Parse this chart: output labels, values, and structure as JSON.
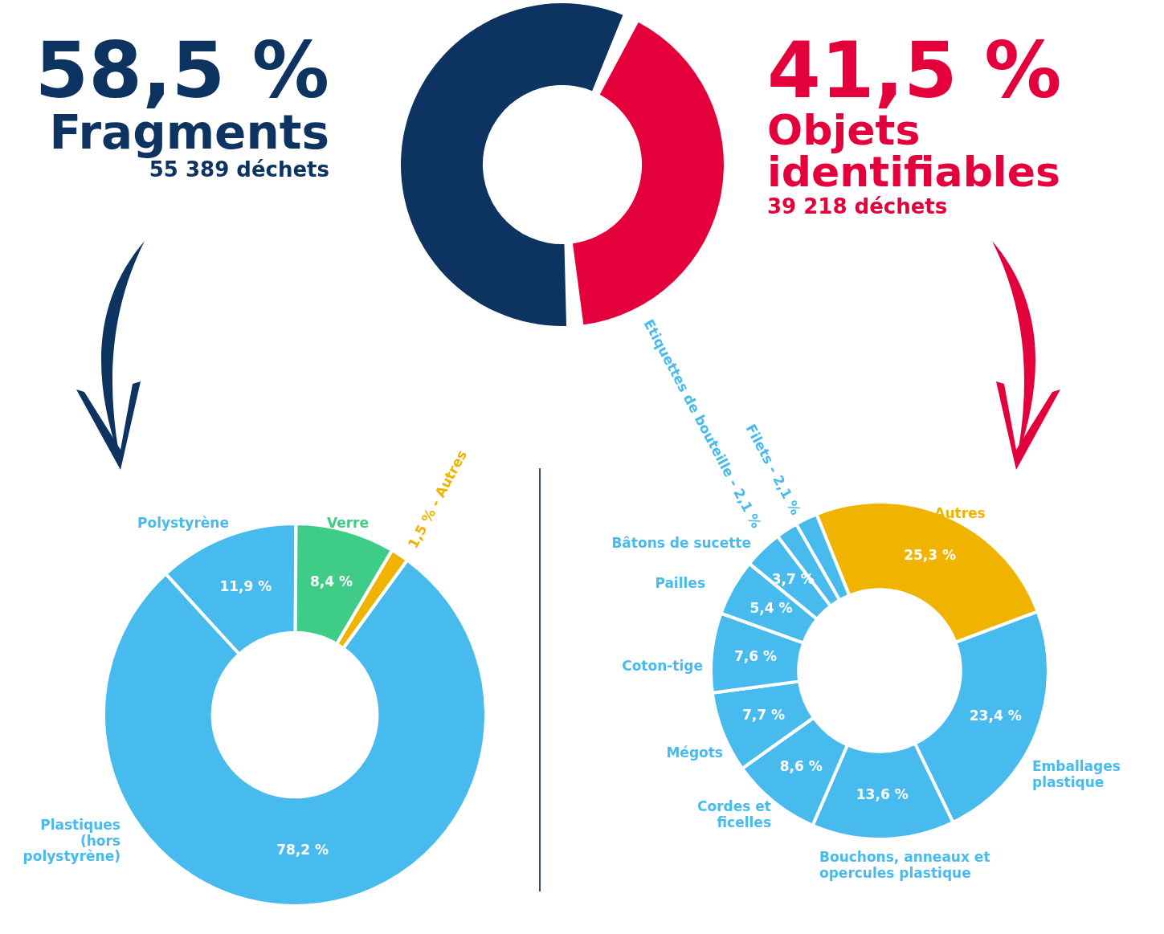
{
  "chart_data": [
    {
      "type": "donut",
      "categories": [
        "Fragments",
        "Objets identifiables"
      ],
      "values": [
        58.5,
        41.5
      ],
      "colors": [
        "#0d3360",
        "#e4003a"
      ],
      "value_labels": [
        "58,5 %",
        "41,5 %"
      ],
      "annotations": [
        "55 389 déchets",
        "39 218 déchets"
      ]
    },
    {
      "type": "donut",
      "categories": [
        "Plastiques (hors polystyrène)",
        "Polystyrène",
        "Verre",
        "1,5 % - Autres"
      ],
      "values": [
        78.2,
        11.9,
        8.4,
        1.5
      ],
      "colors": [
        "#48bbee",
        "#48bbee",
        "#3ecc87",
        "#f0b400"
      ],
      "value_labels": [
        "78,2 %",
        "11,9 %",
        "8,4 %",
        null
      ]
    },
    {
      "type": "donut",
      "categories": [
        "Autres",
        "Emballages plastique",
        "Bouchons, anneaux et opercules plastique",
        "Cordes et ficelles",
        "Mégots",
        "Coton-tige",
        "Pailles",
        "Bâtons de sucette",
        "Etiquettes de bouteille - 2,1 %",
        "Filets - 2,1 %"
      ],
      "values": [
        25.3,
        23.4,
        13.6,
        8.6,
        7.7,
        7.6,
        5.4,
        3.7,
        2.1,
        2.1
      ],
      "colors": [
        "#f0b400",
        "#48bbee",
        "#48bbee",
        "#48bbee",
        "#48bbee",
        "#48bbee",
        "#48bbee",
        "#48bbee",
        "#48bbee",
        "#48bbee"
      ],
      "value_labels": [
        "25,3 %",
        "23,4 %",
        "13,6 %",
        "8,6 %",
        "7,7 %",
        "7,6 %",
        "5,4 %",
        "3,7 %",
        null,
        null
      ]
    }
  ]
}
